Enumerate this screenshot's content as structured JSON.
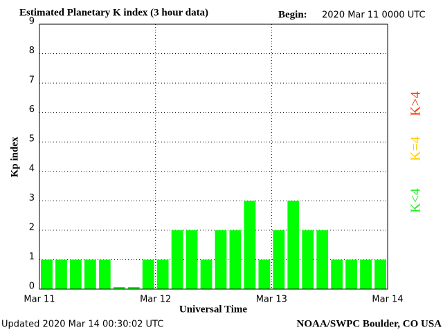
{
  "chart_data": {
    "type": "bar",
    "title": "Estimated Planetary K index (3 hour data)",
    "begin_label": "Begin:",
    "begin": "2020 Mar 11 0000 UTC",
    "x_label": "Universal Time",
    "y_label": "Kp index",
    "updated": "Updated 2020 Mar 14 00:30:02 UTC",
    "source": "NOAA/SWPC Boulder, CO USA",
    "values": [
      1,
      1,
      1,
      1,
      1,
      0,
      0,
      1,
      1,
      2,
      2,
      1,
      2,
      2,
      3,
      1,
      2,
      3,
      2,
      2,
      1,
      1,
      1,
      1
    ],
    "color": "#00ff00",
    "xlim": [
      0,
      24
    ],
    "xticks": [
      {
        "value": 0,
        "label": "Mar 11"
      },
      {
        "value": 8,
        "label": "Mar 12"
      },
      {
        "value": 16,
        "label": "Mar 13"
      },
      {
        "value": 24,
        "label": "Mar 14"
      }
    ],
    "ylim": [
      0,
      9
    ],
    "yticks": [
      0,
      1,
      2,
      3,
      4,
      5,
      6,
      7,
      8,
      9
    ],
    "grid": true,
    "legend": [
      {
        "label": "K<4",
        "color": "#22ee22"
      },
      {
        "label": "K=4",
        "color": "#ffcc00"
      },
      {
        "label": "K>4",
        "color": "#ff3300"
      }
    ]
  }
}
